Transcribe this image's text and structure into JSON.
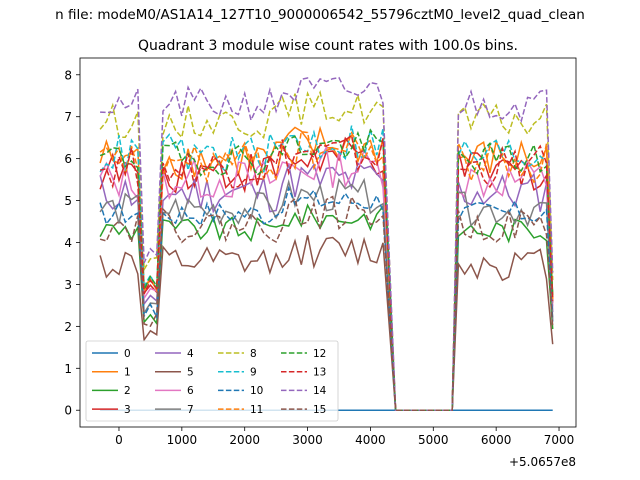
{
  "suptitle": "n file: modeM0/AS1A14_127T10_9000006542_55796cztM0_level2_quad_clean",
  "chart_data": {
    "type": "line",
    "title": "Quadrant 3 module wise count rates with 100.0s bins.",
    "xlabel": "",
    "ylabel": "",
    "offset_text": "+5.0657e8",
    "xlim": [
      -620,
      7270
    ],
    "ylim": [
      -0.4,
      8.4
    ],
    "xticks": [
      0,
      1000,
      2000,
      3000,
      4000,
      5000,
      6000,
      7000
    ],
    "yticks": [
      0,
      1,
      2,
      3,
      4,
      5,
      6,
      7,
      8
    ],
    "grid": false,
    "legend": {
      "placement": "lower-left",
      "columns": 4
    },
    "gap": [
      4400,
      5300
    ],
    "segments": [
      [
        -300,
        4250
      ],
      [
        5400,
        6900
      ]
    ],
    "series": [
      {
        "name": "0",
        "color": "#1f77b4",
        "dash": "solid",
        "level": 0.0,
        "amp": 0.0
      },
      {
        "name": "1",
        "color": "#ff7f0e",
        "dash": "solid",
        "level": 6.0,
        "amp": 0.25
      },
      {
        "name": "2",
        "color": "#2ca02c",
        "dash": "solid",
        "level": 4.3,
        "amp": 0.15
      },
      {
        "name": "3",
        "color": "#d62728",
        "dash": "solid",
        "level": 5.7,
        "amp": 0.25
      },
      {
        "name": "4",
        "color": "#9467bd",
        "dash": "solid",
        "level": 5.2,
        "amp": 0.25
      },
      {
        "name": "5",
        "color": "#8c564b",
        "dash": "solid",
        "level": 3.5,
        "amp": 0.2
      },
      {
        "name": "6",
        "color": "#e377c2",
        "dash": "solid",
        "level": 5.5,
        "amp": 0.25
      },
      {
        "name": "7",
        "color": "#7f7f7f",
        "dash": "solid",
        "level": 4.8,
        "amp": 0.2
      },
      {
        "name": "8",
        "color": "#bcbd22",
        "dash": "dashed",
        "level": 6.9,
        "amp": 0.2
      },
      {
        "name": "9",
        "color": "#17becf",
        "dash": "dashed",
        "level": 6.1,
        "amp": 0.25
      },
      {
        "name": "10",
        "color": "#1f77b4",
        "dash": "dashed",
        "level": 4.7,
        "amp": 0.15
      },
      {
        "name": "11",
        "color": "#ff7f0e",
        "dash": "dashed",
        "level": 5.9,
        "amp": 0.25
      },
      {
        "name": "12",
        "color": "#2ca02c",
        "dash": "dashed",
        "level": 6.0,
        "amp": 0.2
      },
      {
        "name": "13",
        "color": "#d62728",
        "dash": "dashed",
        "level": 5.8,
        "amp": 0.25
      },
      {
        "name": "14",
        "color": "#9467bd",
        "dash": "dashed",
        "level": 7.3,
        "amp": 0.2
      },
      {
        "name": "15",
        "color": "#8c564b",
        "dash": "dashed",
        "level": 4.4,
        "amp": 0.2
      }
    ]
  }
}
